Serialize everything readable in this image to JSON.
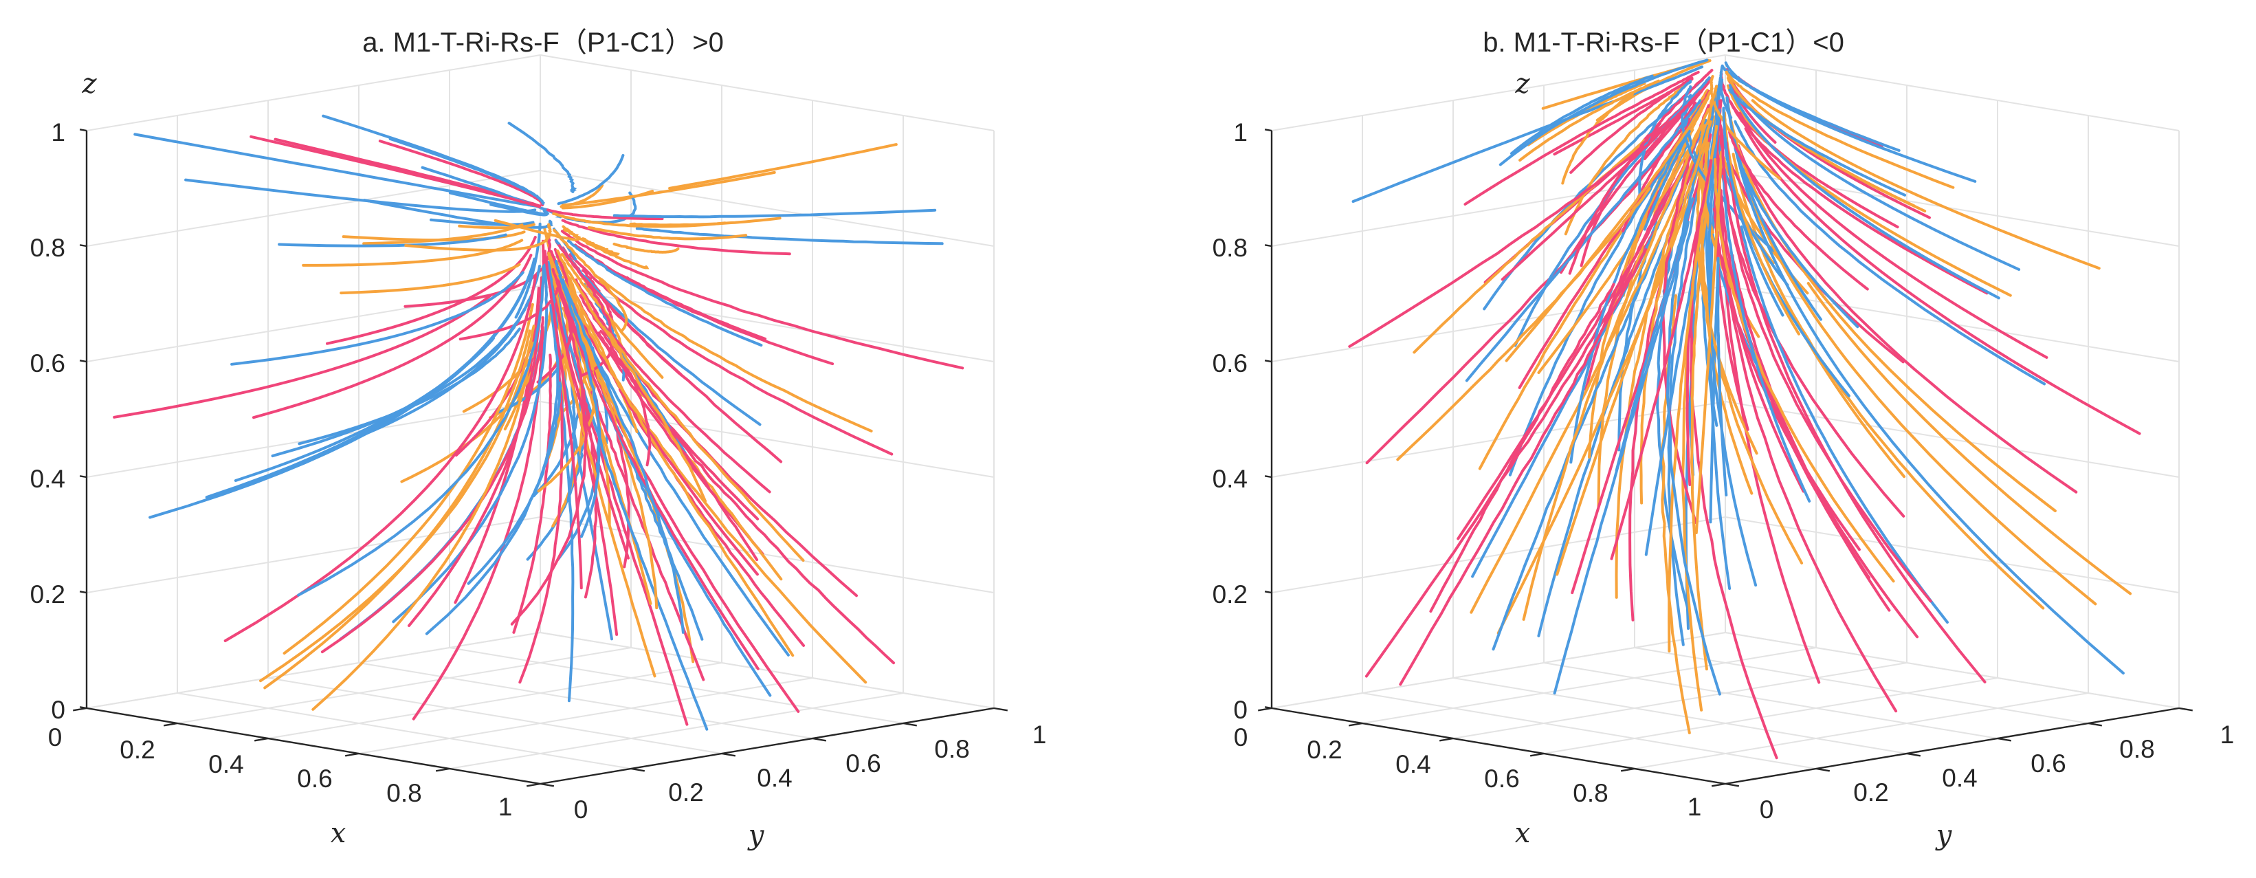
{
  "chart_data": [
    {
      "type": "line",
      "subtype": "3d-phase-trajectories",
      "title": "a. M1-T-Ri-Rs-F（P1-C1）>0",
      "xlabel": "x",
      "ylabel": "y",
      "zlabel": "z",
      "xlim": [
        0,
        1
      ],
      "ylim": [
        0,
        1
      ],
      "zlim": [
        0,
        1
      ],
      "x_ticks": [
        "0",
        "0.2",
        "0.4",
        "0.6",
        "0.8",
        "1"
      ],
      "y_ticks": [
        "0",
        "0.2",
        "0.4",
        "0.6",
        "0.8",
        "1"
      ],
      "z_ticks": [
        "0",
        "0.2",
        "0.4",
        "0.6",
        "0.8",
        "1"
      ],
      "series_colors": [
        "#f7a33b",
        "#4b9ae0",
        "#f0457a"
      ],
      "equilibrium": [
        1,
        0,
        1
      ],
      "behaviour": "trajectories converge toward x=1, y=0, z=1"
    },
    {
      "type": "line",
      "subtype": "3d-phase-trajectories",
      "title": "b. M1-T-Ri-Rs-F（P1-C1）<0",
      "xlabel": "x",
      "ylabel": "y",
      "zlabel": "z",
      "xlim": [
        0,
        1
      ],
      "ylim": [
        0,
        1
      ],
      "zlim": [
        0,
        1
      ],
      "x_ticks": [
        "0",
        "0.2",
        "0.4",
        "0.6",
        "0.8",
        "1"
      ],
      "y_ticks": [
        "0",
        "0.2",
        "0.4",
        "0.6",
        "0.8",
        "1"
      ],
      "z_ticks": [
        "0",
        "0.2",
        "0.4",
        "0.6",
        "0.8",
        "1"
      ],
      "series_colors": [
        "#f7a33b",
        "#4b9ae0",
        "#f0457a"
      ],
      "equilibrium": [
        0,
        1,
        1
      ],
      "behaviour": "trajectories converge toward x=0, y=1, z=1"
    }
  ]
}
